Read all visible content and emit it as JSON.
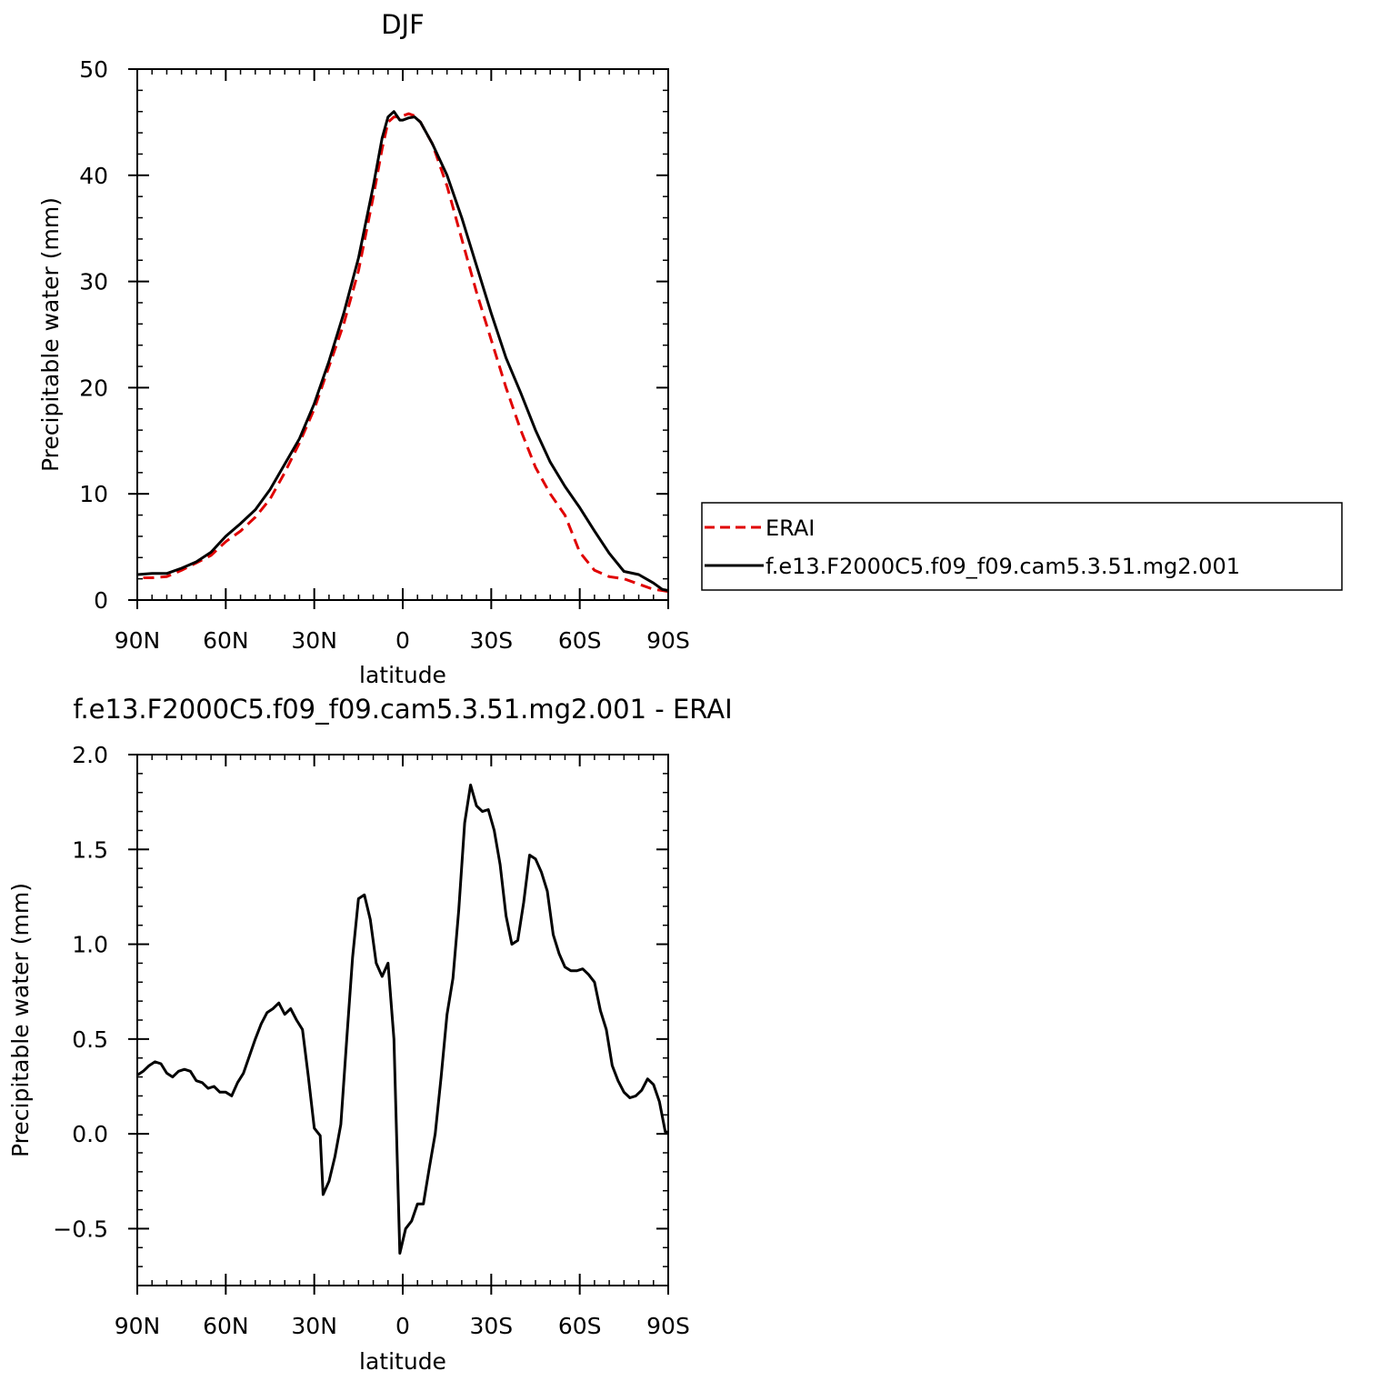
{
  "chart_data": [
    {
      "type": "line",
      "title": "DJF",
      "xlabel": "latitude",
      "ylabel": "Precipitable water (mm)",
      "xlim": [
        90,
        -90
      ],
      "ylim": [
        0,
        50
      ],
      "x_ticks": [
        90,
        60,
        30,
        0,
        -30,
        -60,
        -90
      ],
      "x_tick_labels": [
        "90N",
        "60N",
        "30N",
        "0",
        "30S",
        "60S",
        "90S"
      ],
      "y_ticks": [
        0,
        10,
        20,
        30,
        40,
        50
      ],
      "y_tick_labels": [
        "0",
        "10",
        "20",
        "30",
        "40",
        "50"
      ],
      "legend_position": "right",
      "series": [
        {
          "name": "ERAI",
          "color": "#e00000",
          "style": "dashed",
          "x": [
            88,
            85,
            80,
            75,
            70,
            65,
            60,
            55,
            50,
            45,
            40,
            35,
            30,
            25,
            20,
            15,
            10,
            7,
            5,
            3,
            1,
            0,
            -2,
            -4,
            -6,
            -10,
            -15,
            -20,
            -25,
            -30,
            -35,
            -40,
            -45,
            -50,
            -55,
            -60,
            -65,
            -70,
            -75,
            -80,
            -85,
            -88,
            -90
          ],
          "y": [
            2.1,
            2.1,
            2.2,
            2.8,
            3.5,
            4.2,
            5.5,
            6.5,
            7.8,
            9.5,
            12,
            14.8,
            18,
            22,
            26,
            31,
            38,
            42.5,
            45,
            45.5,
            45.5,
            45.6,
            45.8,
            45.6,
            45,
            43,
            39,
            34,
            29,
            24.5,
            20,
            16,
            12.5,
            10,
            8,
            4.5,
            2.8,
            2.2,
            2,
            1.5,
            1,
            0.9,
            0.8
          ]
        },
        {
          "name": "f.e13.F2000C5.f09_f09.cam5.3.51.mg2.001",
          "color": "#000000",
          "style": "solid",
          "x": [
            90,
            85,
            80,
            75,
            70,
            65,
            60,
            55,
            50,
            45,
            40,
            35,
            30,
            25,
            20,
            15,
            10,
            7,
            5,
            3,
            1,
            0,
            -2,
            -4,
            -6,
            -10,
            -15,
            -20,
            -25,
            -30,
            -35,
            -40,
            -45,
            -50,
            -55,
            -60,
            -65,
            -70,
            -75,
            -80,
            -85,
            -88,
            -90
          ],
          "y": [
            2.4,
            2.5,
            2.5,
            3.0,
            3.6,
            4.5,
            6.0,
            7.2,
            8.5,
            10.4,
            12.8,
            15.2,
            18.5,
            22.5,
            27,
            32.2,
            39,
            43.5,
            45.5,
            46,
            45.2,
            45.2,
            45.4,
            45.5,
            45,
            43,
            40,
            36,
            31.5,
            27,
            22.8,
            19.5,
            16,
            13,
            10.7,
            8.7,
            6.5,
            4.4,
            2.7,
            2.4,
            1.6,
            1.0,
            0.9
          ]
        }
      ]
    },
    {
      "type": "line",
      "title": "f.e13.F2000C5.f09_f09.cam5.3.51.mg2.001  -  ERAI",
      "xlabel": "latitude",
      "ylabel": "Precipitable water (mm)",
      "xlim": [
        90,
        -90
      ],
      "ylim": [
        -0.8,
        2.0
      ],
      "x_ticks": [
        90,
        60,
        30,
        0,
        -30,
        -60,
        -90
      ],
      "x_tick_labels": [
        "90N",
        "60N",
        "30N",
        "0",
        "30S",
        "60S",
        "90S"
      ],
      "y_ticks": [
        -0.5,
        0.0,
        0.5,
        1.0,
        1.5,
        2.0
      ],
      "y_tick_labels": [
        "−0.5",
        "0.0",
        "0.5",
        "1.0",
        "1.5",
        "2.0"
      ],
      "series": [
        {
          "color": "#000000",
          "style": "solid",
          "x": [
            90,
            88,
            86,
            84,
            82,
            80,
            78,
            76,
            74,
            72,
            70,
            68,
            66,
            64,
            62,
            60,
            58,
            56,
            54,
            52,
            50,
            48,
            46,
            44,
            42,
            40,
            38,
            36,
            34,
            32,
            30,
            28,
            27,
            25,
            23,
            21,
            19,
            17,
            15,
            13,
            11,
            9,
            7,
            5,
            3,
            1,
            -1,
            -3,
            -5,
            -7,
            -9,
            -11,
            -13,
            -15,
            -17,
            -19,
            -21,
            -23,
            -25,
            -27,
            -29,
            -31,
            -33,
            -35,
            -37,
            -39,
            -41,
            -43,
            -45,
            -47,
            -49,
            -51,
            -53,
            -55,
            -57,
            -59,
            -61,
            -63,
            -65,
            -67,
            -69,
            -71,
            -73,
            -75,
            -77,
            -79,
            -81,
            -83,
            -85,
            -87,
            -89,
            -90
          ],
          "y": [
            0.31,
            0.33,
            0.36,
            0.38,
            0.37,
            0.32,
            0.3,
            0.33,
            0.34,
            0.33,
            0.28,
            0.27,
            0.24,
            0.25,
            0.22,
            0.22,
            0.2,
            0.27,
            0.32,
            0.41,
            0.5,
            0.58,
            0.64,
            0.66,
            0.69,
            0.63,
            0.66,
            0.6,
            0.55,
            0.3,
            0.03,
            -0.01,
            -0.32,
            -0.25,
            -0.12,
            0.05,
            0.5,
            0.93,
            1.24,
            1.26,
            1.13,
            0.9,
            0.83,
            0.9,
            0.5,
            -0.63,
            -0.5,
            -0.46,
            -0.37,
            -0.37,
            -0.18,
            0.0,
            0.3,
            0.63,
            0.82,
            1.18,
            1.64,
            1.84,
            1.73,
            1.7,
            1.71,
            1.6,
            1.42,
            1.15,
            1.0,
            1.02,
            1.22,
            1.47,
            1.45,
            1.38,
            1.28,
            1.05,
            0.95,
            0.88,
            0.86,
            0.86,
            0.87,
            0.84,
            0.8,
            0.65,
            0.55,
            0.36,
            0.28,
            0.22,
            0.19,
            0.2,
            0.23,
            0.29,
            0.26,
            0.17,
            0.01,
            0.01
          ]
        }
      ]
    }
  ]
}
